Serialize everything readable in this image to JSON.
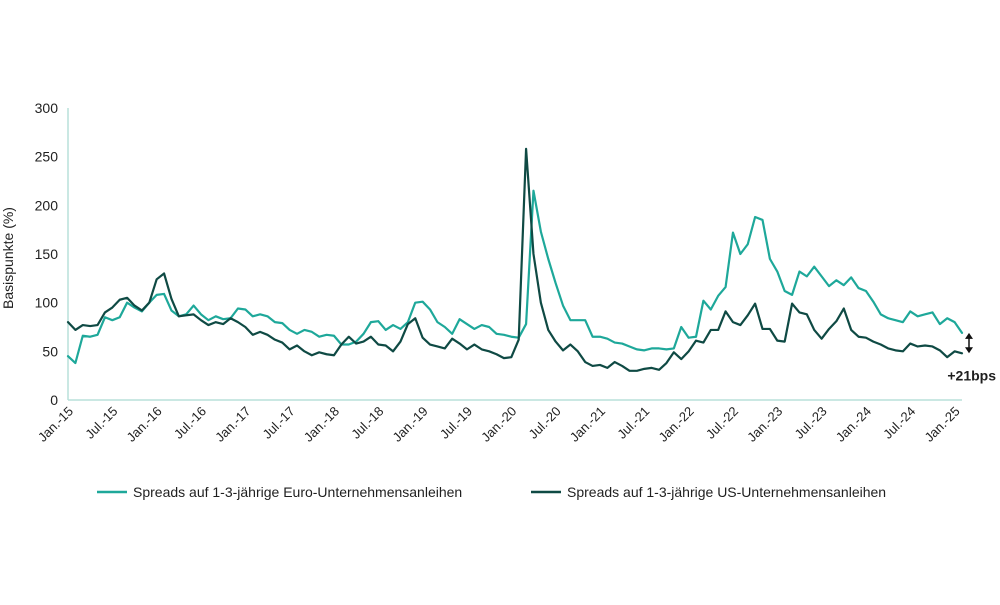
{
  "chart_data": {
    "type": "line",
    "title": "",
    "xlabel": "",
    "ylabel": "Basispunkte (%)",
    "ylim": [
      0,
      300
    ],
    "yticks": [
      0,
      50,
      100,
      150,
      200,
      250,
      300
    ],
    "grid": false,
    "legend_position": "bottom",
    "x_start": "2015-01",
    "x_end": "2025-01",
    "x_tick_labels": [
      "Jan.-15",
      "Jul.-15",
      "Jan.-16",
      "Jul.-16",
      "Jan.-17",
      "Jul.-17",
      "Jan.-18",
      "Jul.-18",
      "Jan.-19",
      "Jul.-19",
      "Jan.-20",
      "Jul.-20",
      "Jan.-21",
      "Jul.-21",
      "Jan.-22",
      "Jul.-22",
      "Jan.-23",
      "Jul.-23",
      "Jan.-24",
      "Jul.-24",
      "Jan.-25"
    ],
    "annotation": {
      "text": "+21bps",
      "from_value": 48,
      "to_value": 69
    },
    "series": [
      {
        "name": "Spreads auf 1-3-jährige Euro-Unternehmensanleihen",
        "color": "#1ea89a",
        "values": [
          45,
          38,
          66,
          65,
          67,
          85,
          82,
          85,
          100,
          95,
          91,
          100,
          108,
          109,
          92,
          86,
          88,
          97,
          88,
          82,
          86,
          83,
          84,
          94,
          93,
          86,
          88,
          86,
          80,
          79,
          72,
          68,
          72,
          70,
          65,
          67,
          66,
          57,
          57,
          60,
          68,
          80,
          81,
          72,
          77,
          73,
          80,
          100,
          101,
          93,
          80,
          75,
          68,
          83,
          78,
          73,
          77,
          75,
          68,
          67,
          65,
          64,
          78,
          215,
          173,
          145,
          120,
          97,
          82,
          82,
          82,
          65,
          65,
          63,
          59,
          58,
          55,
          52,
          51,
          53,
          53,
          52,
          53,
          75,
          64,
          65,
          102,
          93,
          107,
          116,
          172,
          150,
          160,
          188,
          185,
          145,
          132,
          112,
          108,
          132,
          127,
          137,
          127,
          117,
          123,
          118,
          126,
          115,
          112,
          101,
          88,
          84,
          82,
          80,
          91,
          86,
          88,
          90,
          78,
          84,
          80,
          69
        ]
      },
      {
        "name": "Spreads auf 1-3-jährige US-Unternehmensanleihen",
        "color": "#0f4a44",
        "values": [
          80,
          72,
          77,
          76,
          77,
          90,
          95,
          103,
          105,
          97,
          92,
          100,
          124,
          130,
          104,
          86,
          87,
          88,
          82,
          77,
          80,
          78,
          84,
          80,
          75,
          67,
          70,
          67,
          62,
          59,
          52,
          56,
          50,
          46,
          49,
          47,
          46,
          57,
          65,
          58,
          60,
          65,
          57,
          56,
          50,
          60,
          78,
          84,
          64,
          57,
          55,
          53,
          63,
          58,
          52,
          57,
          52,
          50,
          47,
          43,
          44,
          62,
          258,
          150,
          100,
          72,
          60,
          51,
          57,
          50,
          39,
          35,
          36,
          33,
          39,
          35,
          30,
          30,
          32,
          33,
          31,
          38,
          49,
          42,
          50,
          61,
          59,
          72,
          72,
          91,
          80,
          77,
          87,
          99,
          73,
          73,
          61,
          60,
          99,
          90,
          88,
          72,
          63,
          73,
          81,
          94,
          72,
          65,
          64,
          60,
          57,
          53,
          51,
          50,
          58,
          55,
          56,
          55,
          51,
          44,
          50,
          48
        ]
      }
    ]
  }
}
